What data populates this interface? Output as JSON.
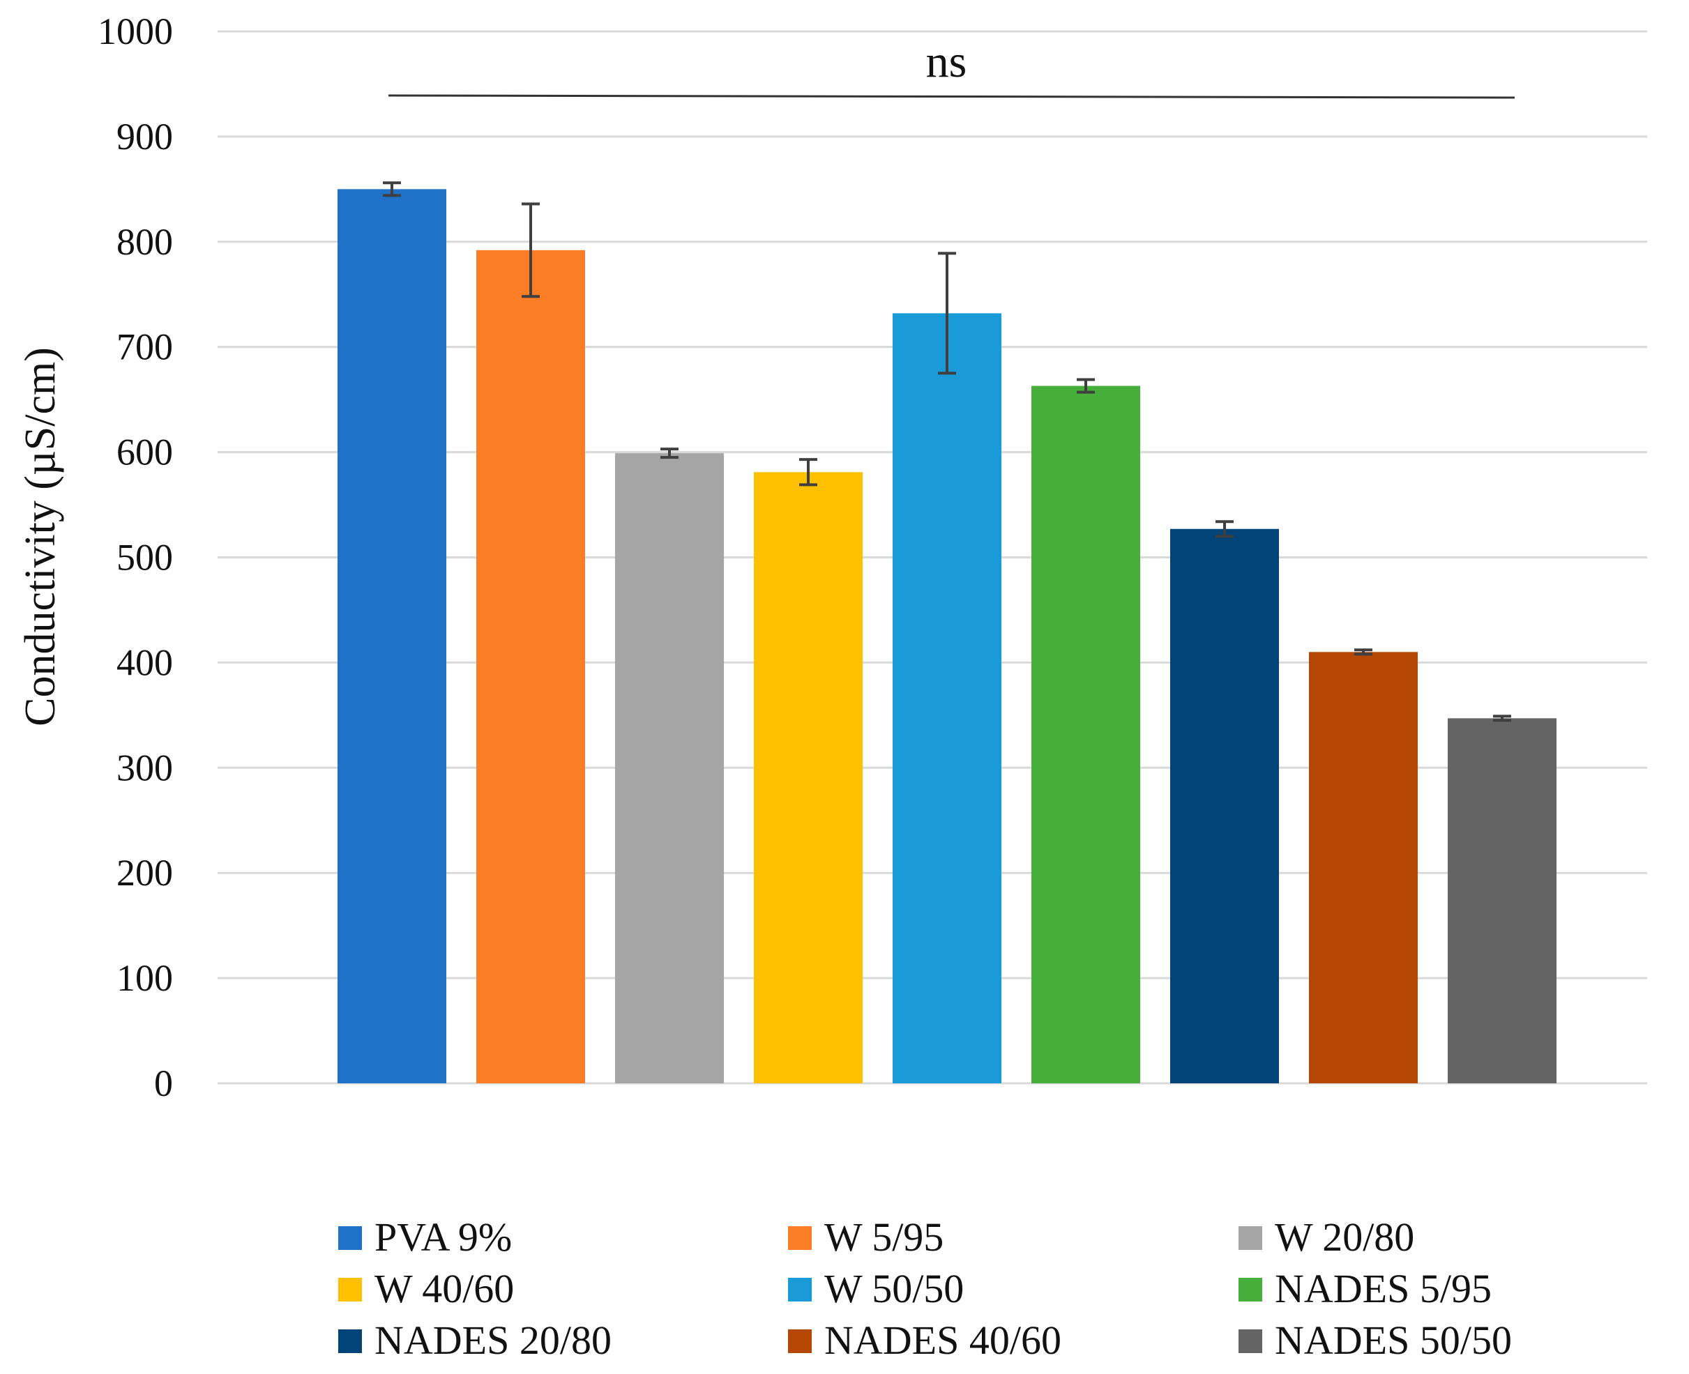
{
  "chart_data": {
    "type": "bar",
    "title": "",
    "xlabel": "",
    "ylabel": "Conductivity (µS/cm)",
    "ylim": [
      0,
      1000
    ],
    "yticks": [
      0,
      100,
      200,
      300,
      400,
      500,
      600,
      700,
      800,
      900,
      1000
    ],
    "grid": true,
    "legend_position": "bottom",
    "annotation": "ns",
    "categories": [
      "PVA 9%",
      "W 5/95",
      "W 20/80",
      "W 40/60",
      "W 50/50",
      "NADES 5/95",
      "NADES 20/80",
      "NADES 40/60",
      "NADES 50/50"
    ],
    "values": [
      850,
      792,
      599,
      581,
      732,
      663,
      527,
      410,
      347
    ],
    "errors": [
      6,
      44,
      4,
      12,
      57,
      6,
      7,
      2,
      2
    ],
    "colors": [
      "#1F72C8",
      "#FB7D26",
      "#A5A5A5",
      "#FFC000",
      "#1A9AD6",
      "#46AE3A",
      "#034478",
      "#B54604",
      "#646464"
    ]
  }
}
